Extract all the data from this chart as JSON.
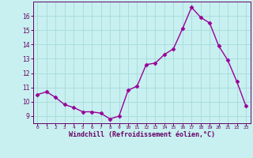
{
  "x": [
    0,
    1,
    2,
    3,
    4,
    5,
    6,
    7,
    8,
    9,
    10,
    11,
    12,
    13,
    14,
    15,
    16,
    17,
    18,
    19,
    20,
    21,
    22,
    23
  ],
  "y": [
    10.5,
    10.7,
    10.3,
    9.8,
    9.6,
    9.3,
    9.3,
    9.2,
    8.8,
    9.0,
    10.8,
    11.1,
    12.6,
    12.7,
    13.3,
    13.7,
    15.1,
    16.6,
    15.9,
    15.5,
    13.9,
    12.9,
    11.4,
    9.7
  ],
  "line_color": "#990099",
  "marker": "D",
  "marker_size": 2.5,
  "bg_color": "#c8f0f0",
  "grid_color": "#aadddd",
  "xlabel": "Windchill (Refroidissement éolien,°C)",
  "xlabel_color": "#660066",
  "tick_color": "#660066",
  "ylim": [
    8.5,
    17.0
  ],
  "xlim": [
    -0.5,
    23.5
  ],
  "yticks": [
    9,
    10,
    11,
    12,
    13,
    14,
    15,
    16
  ],
  "xticks": [
    0,
    1,
    2,
    3,
    4,
    5,
    6,
    7,
    8,
    9,
    10,
    11,
    12,
    13,
    14,
    15,
    16,
    17,
    18,
    19,
    20,
    21,
    22,
    23
  ],
  "spine_color": "#660066",
  "line_width": 1.0
}
